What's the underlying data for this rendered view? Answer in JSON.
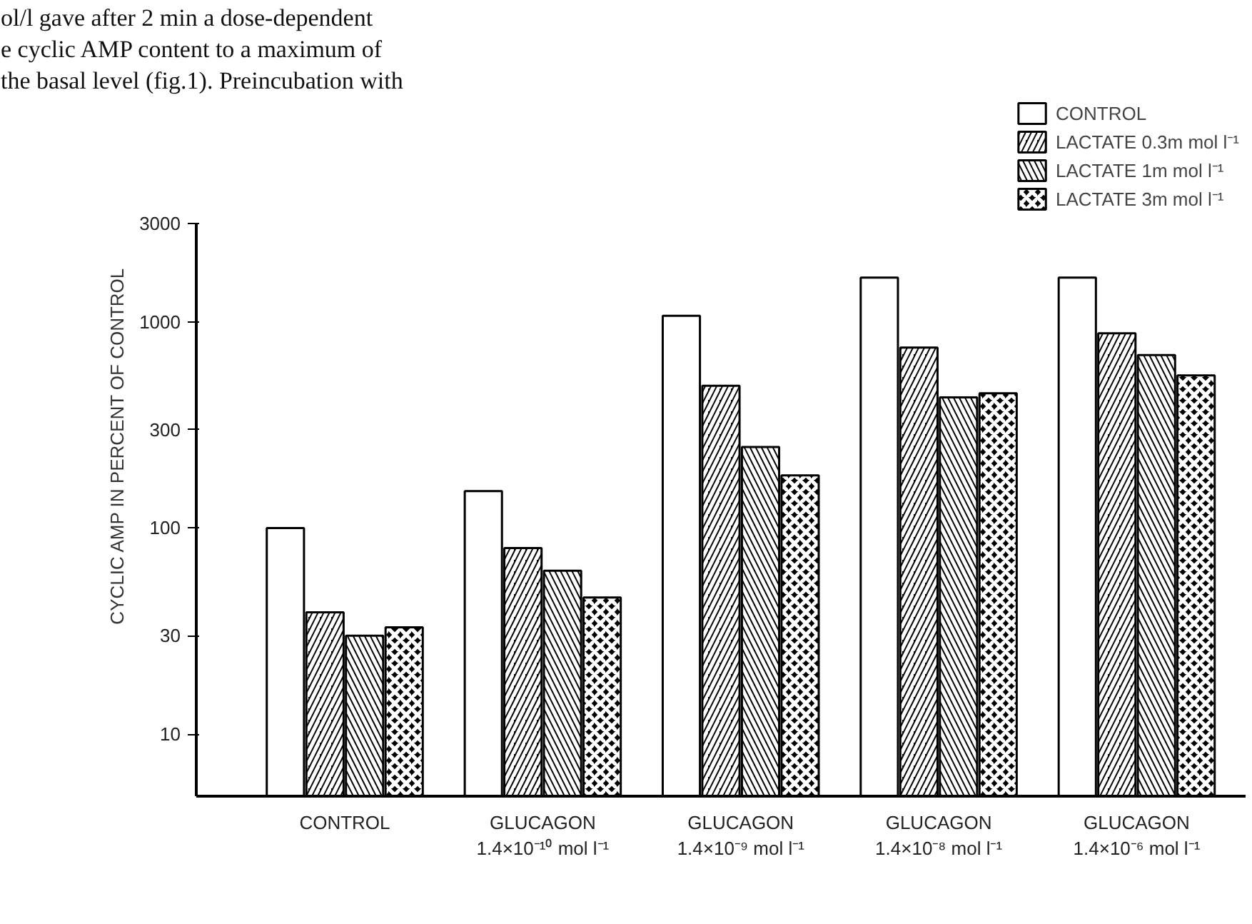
{
  "chart_data": {
    "type": "bar",
    "ylabel": "CYCLIC AMP IN PERCENT OF CONTROL",
    "log": true,
    "grid": false,
    "legend": "top right",
    "categories": [
      "CONTROL",
      "GLUCAGON\n1.4×10⁻¹⁰ mol l⁻¹",
      "GLUCAGON\n1.4×10⁻⁹ mol l⁻¹",
      "GLUCAGON\n1.4×10⁻⁸ mol l⁻¹",
      "GLUCAGON\n1.4×10⁻⁶ mol l⁻¹"
    ],
    "ylim": [
      5,
      3000
    ],
    "yticks": [
      10,
      30,
      100,
      300,
      1000,
      3000
    ],
    "series": [
      {
        "name": "CONTROL",
        "color": "#ffffff",
        "values": [
          100,
          151,
          1070,
          1640,
          1640
        ]
      },
      {
        "name": "LACTATE 0.3m mol l⁻¹",
        "color": "#000000",
        "values": [
          39,
          80,
          490,
          750,
          880
        ]
      },
      {
        "name": "LACTATE 1m mol l⁻¹",
        "color": "#000000",
        "values": [
          30,
          62,
          247,
          430,
          690
        ]
      },
      {
        "name": "LACTATE 3m mol l⁻¹",
        "color": "#000000",
        "values": [
          33,
          46,
          180,
          450,
          550
        ]
      }
    ],
    "annotations": [
      "ol/l gave after 2 min a dose-dependent",
      "e cyclic AMP content to a maximum of",
      "the basal level (fig.1). Preincubation with"
    ]
  }
}
